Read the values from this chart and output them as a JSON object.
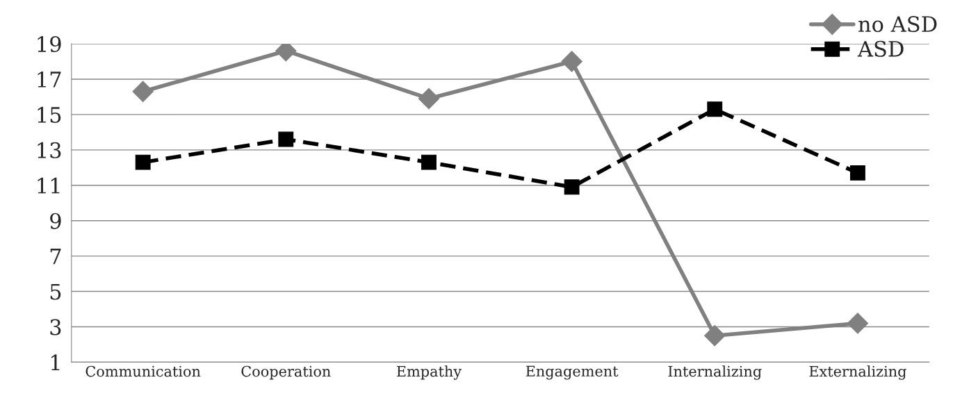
{
  "chart_data": {
    "type": "line",
    "categories": [
      "Communication",
      "Cooperation",
      "Empathy",
      "Engagement",
      "Internalizing",
      "Externalizing"
    ],
    "series": [
      {
        "name": "no ASD",
        "color": "#808080",
        "marker": "diamond",
        "line_style": "solid",
        "values": [
          16.3,
          18.6,
          15.9,
          18.0,
          2.5,
          3.2
        ]
      },
      {
        "name": "ASD",
        "color": "#000000",
        "marker": "square",
        "line_style": "dashed",
        "values": [
          12.3,
          13.6,
          12.3,
          10.9,
          15.3,
          11.7
        ]
      }
    ],
    "ylim": [
      1,
      19
    ],
    "yticks": [
      1,
      3,
      5,
      7,
      9,
      11,
      13,
      15,
      17,
      19
    ],
    "grid": "y",
    "legend": "top right"
  }
}
